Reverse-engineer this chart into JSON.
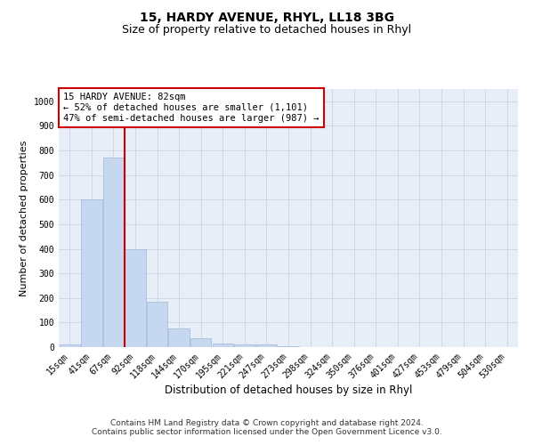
{
  "title": "15, HARDY AVENUE, RHYL, LL18 3BG",
  "subtitle": "Size of property relative to detached houses in Rhyl",
  "xlabel": "Distribution of detached houses by size in Rhyl",
  "ylabel": "Number of detached properties",
  "categories": [
    "15sqm",
    "41sqm",
    "67sqm",
    "92sqm",
    "118sqm",
    "144sqm",
    "170sqm",
    "195sqm",
    "221sqm",
    "247sqm",
    "273sqm",
    "298sqm",
    "324sqm",
    "350sqm",
    "376sqm",
    "401sqm",
    "427sqm",
    "453sqm",
    "479sqm",
    "504sqm",
    "530sqm"
  ],
  "values": [
    12,
    600,
    770,
    400,
    185,
    75,
    35,
    15,
    10,
    10,
    5,
    0,
    0,
    0,
    0,
    0,
    0,
    0,
    0,
    0,
    0
  ],
  "bar_color": "#c5d8f0",
  "bar_edge_color": "#a0b8d8",
  "vline_color": "#cc0000",
  "annotation_text": "15 HARDY AVENUE: 82sqm\n← 52% of detached houses are smaller (1,101)\n47% of semi-detached houses are larger (987) →",
  "annotation_box_color": "#ffffff",
  "annotation_box_edge_color": "#cc0000",
  "ylim": [
    0,
    1050
  ],
  "yticks": [
    0,
    100,
    200,
    300,
    400,
    500,
    600,
    700,
    800,
    900,
    1000
  ],
  "grid_color": "#d0d8e8",
  "background_color": "#e8eef8",
  "footer": "Contains HM Land Registry data © Crown copyright and database right 2024.\nContains public sector information licensed under the Open Government Licence v3.0.",
  "title_fontsize": 10,
  "subtitle_fontsize": 9,
  "xlabel_fontsize": 8.5,
  "ylabel_fontsize": 8,
  "tick_fontsize": 7,
  "annotation_fontsize": 7.5,
  "footer_fontsize": 6.5
}
